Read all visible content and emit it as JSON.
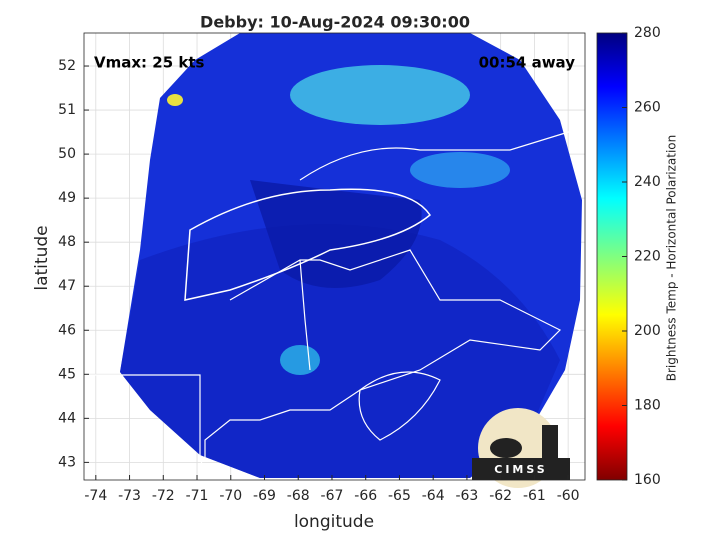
{
  "chart_data": {
    "type": "image",
    "title": "Debby: 10-Aug-2024 09:30:00",
    "annotations": [
      "Vmax: 25 kts",
      "00:54 away"
    ],
    "xlabel": "longitude",
    "ylabel": "latitude",
    "xlim": [
      -74.35,
      -59.5
    ],
    "ylim": [
      42.6,
      52.75
    ],
    "xticks": [
      -74,
      -73,
      -72,
      -71,
      -70,
      -69,
      -68,
      -67,
      -66,
      -65,
      -64,
      -63,
      -62,
      -61,
      -60
    ],
    "yticks": [
      43,
      44,
      45,
      46,
      47,
      48,
      49,
      50,
      51,
      52
    ],
    "grid": true,
    "colorbar": {
      "label": "Brightness Temp - Horizontal Polarization",
      "clim": [
        160,
        280
      ],
      "ticks": [
        160,
        180,
        200,
        220,
        240,
        260,
        280
      ]
    },
    "logo": "CIMSS"
  }
}
